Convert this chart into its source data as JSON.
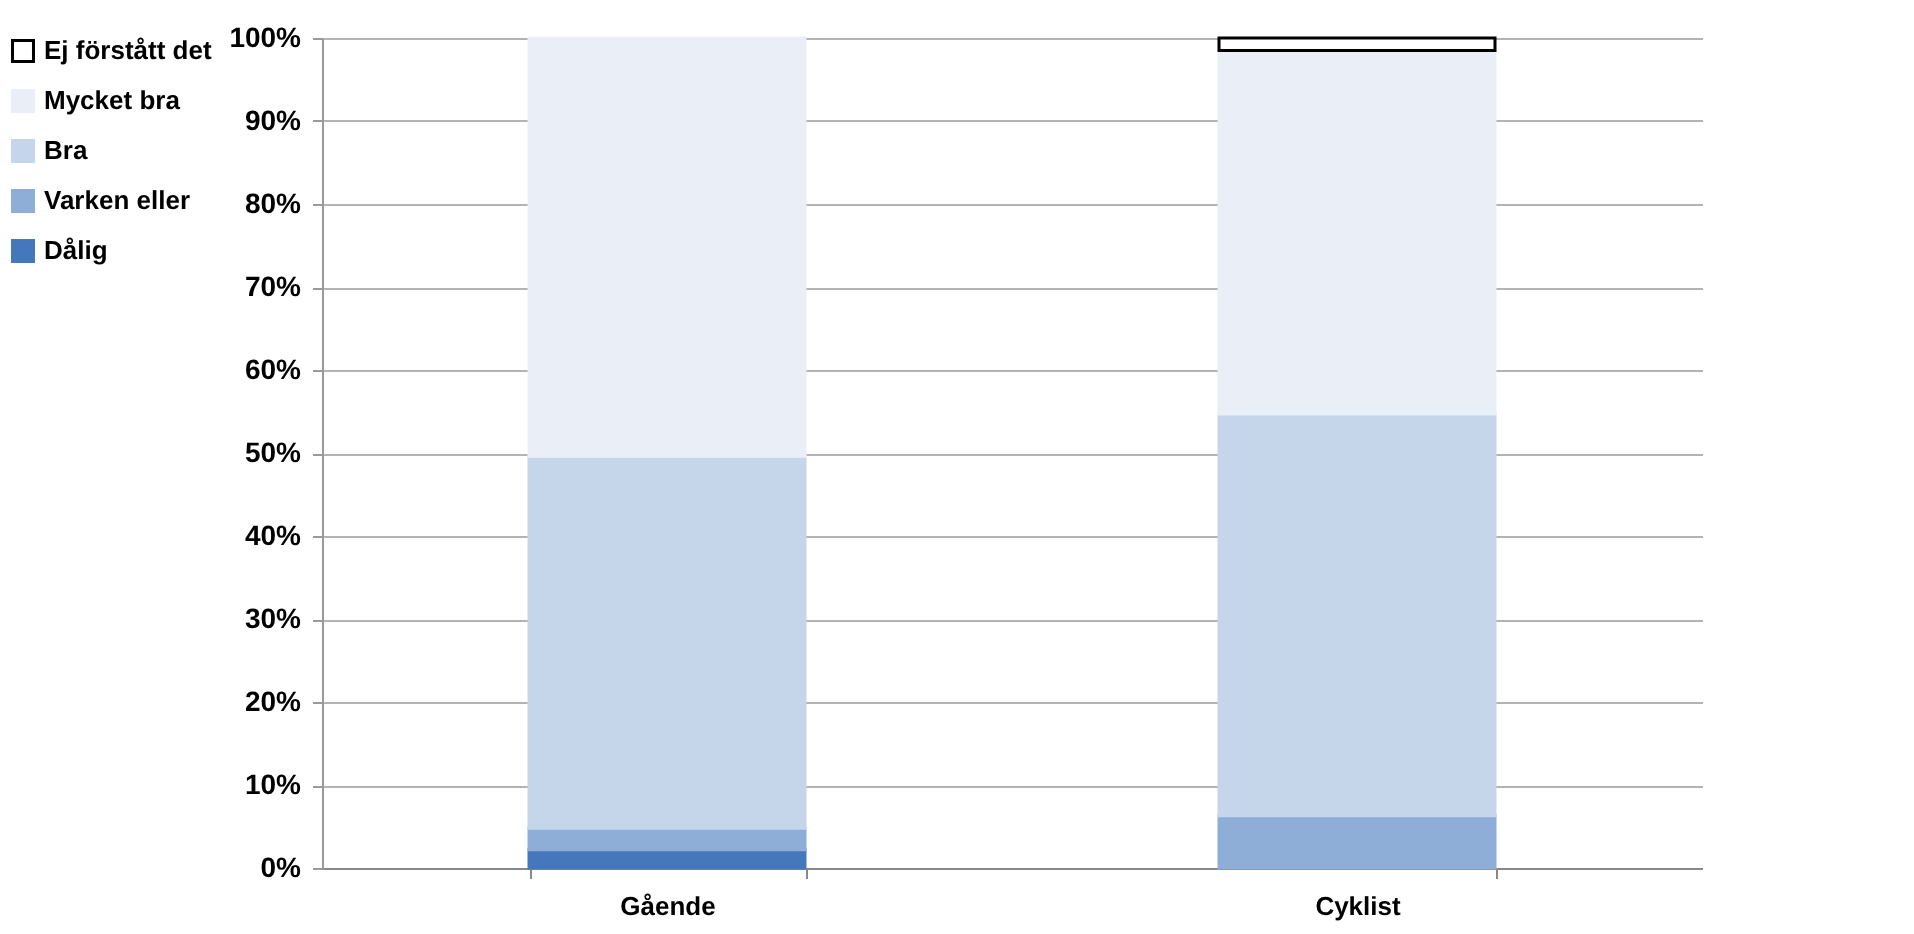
{
  "chart_data": {
    "type": "bar",
    "stacked": true,
    "categories": [
      "Gående",
      "Cyklist"
    ],
    "series": [
      {
        "name": "Dålig",
        "color": "#4477bb",
        "values": [
          2.2,
          0
        ]
      },
      {
        "name": "Varken eller",
        "color": "#8eaed8",
        "values": [
          2.6,
          6.3
        ]
      },
      {
        "name": "Bra",
        "color": "#c5d5ea",
        "values": [
          44.8,
          48.4
        ]
      },
      {
        "name": "Mycket bra",
        "color": "#eaeff7",
        "values": [
          50.4,
          43.8
        ]
      },
      {
        "name": "Ej förstått det",
        "color": "#ffffff",
        "values": [
          0,
          1.5
        ]
      }
    ],
    "ylim": [
      0,
      100
    ],
    "yticks": [
      {
        "value": 0,
        "label": "0%"
      },
      {
        "value": 10,
        "label": "10%"
      },
      {
        "value": 20,
        "label": "20%"
      },
      {
        "value": 30,
        "label": "30%"
      },
      {
        "value": 40,
        "label": "40%"
      },
      {
        "value": 50,
        "label": "50%"
      },
      {
        "value": 60,
        "label": "60%"
      },
      {
        "value": 70,
        "label": "70%"
      },
      {
        "value": 80,
        "label": "80%"
      },
      {
        "value": 90,
        "label": "90%"
      },
      {
        "value": 100,
        "label": "100%"
      }
    ],
    "grid": "y",
    "legend": "left"
  }
}
